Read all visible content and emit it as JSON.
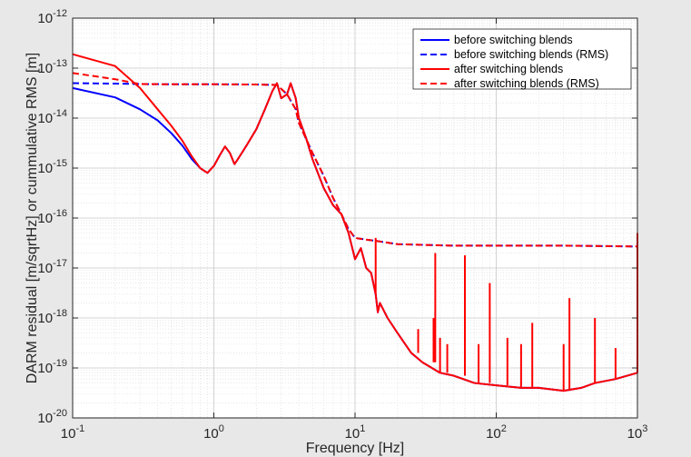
{
  "chart_data": {
    "type": "line",
    "x_scale": "log",
    "y_scale": "log",
    "xlim": [
      0.1,
      1000
    ],
    "ylim": [
      1e-20,
      1e-12
    ],
    "grid": true,
    "legend_position": "top-right",
    "xlabel": "Frequency [Hz]",
    "ylabel": "DARM residual [m/sqrtHz] or cummulative RMS [m]",
    "x_ticks": [
      {
        "value": 0.1,
        "base": "10",
        "exp": "-1"
      },
      {
        "value": 1,
        "base": "10",
        "exp": "0"
      },
      {
        "value": 10,
        "base": "10",
        "exp": "1"
      },
      {
        "value": 100,
        "base": "10",
        "exp": "2"
      },
      {
        "value": 1000,
        "base": "10",
        "exp": "3"
      }
    ],
    "y_ticks": [
      {
        "value": 1e-20,
        "base": "10",
        "exp": "-20"
      },
      {
        "value": 1e-19,
        "base": "10",
        "exp": "-19"
      },
      {
        "value": 1e-18,
        "base": "10",
        "exp": "-18"
      },
      {
        "value": 1e-17,
        "base": "10",
        "exp": "-17"
      },
      {
        "value": 1e-16,
        "base": "10",
        "exp": "-16"
      },
      {
        "value": 1e-15,
        "base": "10",
        "exp": "-15"
      },
      {
        "value": 1e-14,
        "base": "10",
        "exp": "-14"
      },
      {
        "value": 1e-13,
        "base": "10",
        "exp": "-13"
      },
      {
        "value": 1e-12,
        "base": "10",
        "exp": "-12"
      }
    ],
    "series": [
      {
        "name": "before switching blends",
        "color": "#0000ff",
        "style": "solid",
        "x": [
          0.1,
          0.2,
          0.3,
          0.4,
          0.5,
          0.6,
          0.7,
          0.8,
          0.9,
          1.0,
          1.1,
          1.2,
          1.3,
          1.4,
          1.5,
          1.7,
          2.0,
          2.3,
          2.6,
          2.8,
          3.0,
          3.3,
          3.5,
          3.8,
          4.0,
          4.5,
          5,
          6,
          7,
          8,
          9,
          10,
          11,
          12,
          13,
          14,
          14.5,
          15,
          17,
          20,
          25,
          30,
          40,
          50,
          70,
          100,
          150,
          200,
          300,
          400,
          500,
          700,
          1000
        ],
        "y": [
          4e-14,
          2.6e-14,
          1.5e-14,
          9e-15,
          5e-15,
          2.8e-15,
          1.5e-15,
          1e-15,
          8e-16,
          1.1e-15,
          1.8e-15,
          2.7e-15,
          2e-15,
          1.2e-15,
          1.6e-15,
          2.8e-15,
          6e-15,
          1.5e-14,
          3.5e-14,
          5e-14,
          2.5e-14,
          3e-14,
          5e-14,
          2.5e-14,
          1e-14,
          4e-15,
          1.5e-15,
          4e-16,
          1.8e-16,
          1.2e-16,
          5e-17,
          1.5e-17,
          2.5e-17,
          1e-17,
          8e-18,
          3e-18,
          1.3e-18,
          2e-18,
          1e-18,
          5e-19,
          2e-19,
          1.3e-19,
          8e-20,
          7e-20,
          5e-20,
          4.5e-20,
          4e-20,
          4e-20,
          3.5e-20,
          4e-20,
          5e-20,
          6e-20,
          8e-20
        ]
      },
      {
        "name": "before switching blends (RMS)",
        "color": "#0000ff",
        "style": "dashed",
        "x": [
          0.1,
          0.2,
          0.3,
          0.5,
          1,
          2,
          2.8,
          3.3,
          3.8,
          4,
          5,
          6,
          7,
          8,
          9,
          10,
          12,
          14,
          20,
          50,
          100,
          300,
          1000
        ],
        "y": [
          5e-14,
          4.9e-14,
          4.8e-14,
          4.75e-14,
          4.75e-14,
          4.7e-14,
          4.6e-14,
          3e-14,
          1.5e-14,
          8e-15,
          2e-15,
          7e-16,
          2.5e-16,
          1.2e-16,
          6e-17,
          4e-17,
          3.7e-17,
          3.5e-17,
          3e-17,
          2.8e-17,
          2.8e-17,
          2.8e-17,
          2.7e-17
        ]
      },
      {
        "name": "after switching blends",
        "color": "#ff0000",
        "style": "solid",
        "x": [
          0.1,
          0.2,
          0.3,
          0.4,
          0.5,
          0.6,
          0.7,
          0.8,
          0.9,
          1.0,
          1.1,
          1.2,
          1.3,
          1.4,
          1.5,
          1.7,
          2.0,
          2.3,
          2.6,
          2.8,
          3.0,
          3.3,
          3.5,
          3.8,
          4.0,
          4.5,
          5,
          6,
          7,
          8,
          9,
          10,
          11,
          12,
          13,
          14,
          14.5,
          15,
          17,
          20,
          25,
          30,
          40,
          50,
          70,
          100,
          150,
          200,
          300,
          400,
          500,
          700,
          1000
        ],
        "y": [
          1.9e-13,
          1.1e-13,
          4e-14,
          1.5e-14,
          7e-15,
          3.5e-15,
          1.7e-15,
          1e-15,
          8e-16,
          1.1e-15,
          1.8e-15,
          2.7e-15,
          2e-15,
          1.2e-15,
          1.6e-15,
          2.8e-15,
          6e-15,
          1.5e-14,
          3.5e-14,
          5e-14,
          2.5e-14,
          3e-14,
          5e-14,
          2.5e-14,
          1e-14,
          4e-15,
          1.5e-15,
          4e-16,
          1.8e-16,
          1.2e-16,
          5e-17,
          1.5e-17,
          2.5e-17,
          1e-17,
          8e-18,
          3e-18,
          1.3e-18,
          2e-18,
          1e-18,
          5e-19,
          2e-19,
          1.3e-19,
          8e-20,
          7e-20,
          5e-20,
          4.5e-20,
          4e-20,
          4e-20,
          3.5e-20,
          4e-20,
          5e-20,
          6e-20,
          8e-20
        ],
        "peaks": [
          {
            "x": 14,
            "y": 4e-17
          },
          {
            "x": 28,
            "y": 6e-19
          },
          {
            "x": 36,
            "y": 1e-18
          },
          {
            "x": 37,
            "y": 2e-17
          },
          {
            "x": 40,
            "y": 4e-19
          },
          {
            "x": 45,
            "y": 3e-19
          },
          {
            "x": 60,
            "y": 1.8e-17
          },
          {
            "x": 75,
            "y": 3e-19
          },
          {
            "x": 90,
            "y": 5e-18
          },
          {
            "x": 120,
            "y": 4e-19
          },
          {
            "x": 150,
            "y": 3e-19
          },
          {
            "x": 180,
            "y": 8e-19
          },
          {
            "x": 300,
            "y": 3e-19
          },
          {
            "x": 330,
            "y": 2.5e-18
          },
          {
            "x": 500,
            "y": 1e-18
          },
          {
            "x": 700,
            "y": 2.5e-19
          },
          {
            "x": 1000,
            "y": 5e-17
          }
        ]
      },
      {
        "name": "after switching blends (RMS)",
        "color": "#ff0000",
        "style": "dashed",
        "x": [
          0.1,
          0.2,
          0.3,
          0.5,
          1,
          2,
          2.8,
          3.3,
          3.8,
          4,
          5,
          6,
          7,
          8,
          9,
          10,
          12,
          14,
          20,
          50,
          100,
          300,
          1000
        ],
        "y": [
          8e-14,
          6e-14,
          4.8e-14,
          4.75e-14,
          4.75e-14,
          4.7e-14,
          4.6e-14,
          3e-14,
          1.5e-14,
          8e-15,
          2e-15,
          7e-16,
          2.5e-16,
          1.2e-16,
          6e-17,
          4e-17,
          3.7e-17,
          3.5e-17,
          3e-17,
          2.8e-17,
          2.8e-17,
          2.8e-17,
          2.7e-17
        ]
      }
    ]
  }
}
